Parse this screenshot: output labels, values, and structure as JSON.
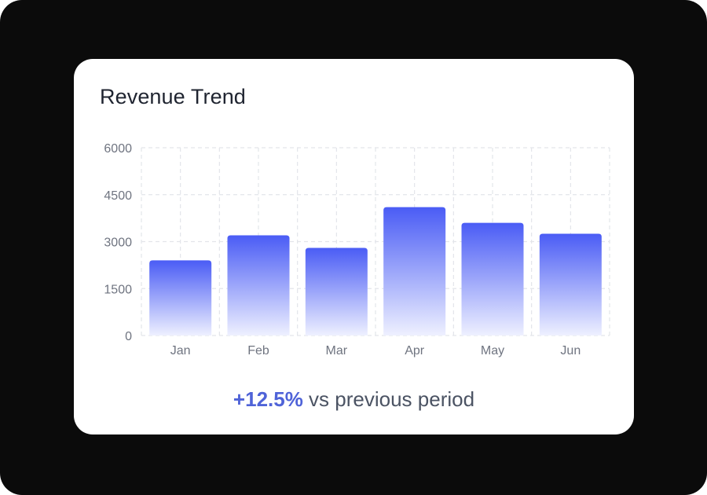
{
  "card": {
    "title": "Revenue Trend",
    "footer_change": "+12.5%",
    "footer_text": " vs previous period"
  },
  "colors": {
    "bar_top": "#4a5cf5",
    "bar_bottom": "#eef0ff",
    "accent": "#4f63d8",
    "grid": "#e3e5ea"
  },
  "chart_data": {
    "type": "bar",
    "title": "Revenue Trend",
    "xlabel": "",
    "ylabel": "",
    "categories": [
      "Jan",
      "Feb",
      "Mar",
      "Apr",
      "May",
      "Jun"
    ],
    "values": [
      2400,
      3200,
      2800,
      4100,
      3600,
      3250
    ],
    "ylim": [
      0,
      6000
    ],
    "yticks": [
      0,
      1500,
      3000,
      4500,
      6000
    ],
    "grid": true,
    "grid_style": "dashed"
  }
}
